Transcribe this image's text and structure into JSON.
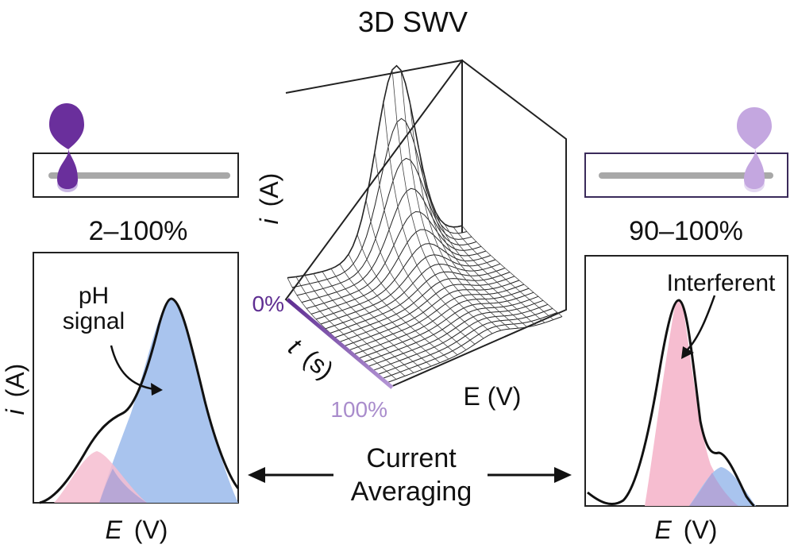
{
  "figure": {
    "title": "3D SWV",
    "center": {
      "axis_i": "i",
      "axis_i_unit": "(A)",
      "axis_t": "t",
      "axis_t_unit": "(s)",
      "axis_e": "E (V)",
      "time_start": "0%",
      "time_end": "100%",
      "colors": {
        "time_start": "#5e2d91",
        "time_end": "#b597d6",
        "grid": "#222222"
      }
    },
    "left": {
      "window_label": "2–100%",
      "y_label": "i",
      "y_unit": "(A)",
      "x_label": "E",
      "x_unit": "(V)",
      "annotation_line1": "pH",
      "annotation_line2": "signal",
      "colors": {
        "signal": "#a9c4ee",
        "interferent": "#f6bdd0",
        "slider": "#6a2f9c"
      }
    },
    "right": {
      "window_label": "90–100%",
      "x_label": "E",
      "x_unit": "(V)",
      "annotation": "Interferent",
      "colors": {
        "signal": "#a9c4ee",
        "interferent": "#f6bdd0",
        "slider": "#c4a7e0"
      }
    },
    "bottom": {
      "line1": "Current",
      "line2": "Averaging"
    }
  }
}
